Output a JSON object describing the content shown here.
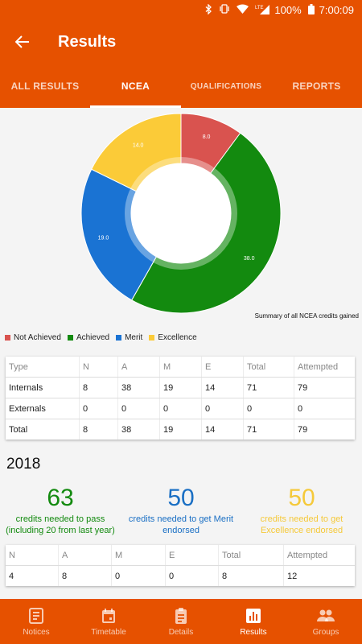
{
  "status_bar": {
    "battery": "100%",
    "time": "7:00:09",
    "network": "LTE"
  },
  "app_bar": {
    "title": "Results"
  },
  "tabs": [
    {
      "label": "ALL RESULTS",
      "active": false
    },
    {
      "label": "NCEA",
      "active": true
    },
    {
      "label": "QUALIFICATIONS",
      "active": false
    },
    {
      "label": "REPORTS",
      "active": false
    }
  ],
  "chart_data": {
    "type": "pie",
    "donut": true,
    "caption": "Summary of all NCEA credits gained",
    "categories": [
      "Not Achieved",
      "Achieved",
      "Merit",
      "Excellence"
    ],
    "values": [
      8.0,
      38.0,
      19.0,
      14.0
    ],
    "value_labels": [
      "8.0",
      "38.0",
      "19.0",
      "14.0"
    ],
    "colors": [
      "#d9534f",
      "#138a0f",
      "#1a73d3",
      "#fbcb38"
    ],
    "legend_position": "bottom-left"
  },
  "summary_table": {
    "headers": [
      "Type",
      "N",
      "A",
      "M",
      "E",
      "Total",
      "Attempted"
    ],
    "rows": [
      [
        "Internals",
        "8",
        "38",
        "19",
        "14",
        "71",
        "79"
      ],
      [
        "Externals",
        "0",
        "0",
        "0",
        "0",
        "0",
        "0"
      ],
      [
        "Total",
        "8",
        "38",
        "19",
        "14",
        "71",
        "79"
      ]
    ]
  },
  "year_section": {
    "year": "2018",
    "stats": [
      {
        "value": "63",
        "label": "credits needed to pass (including 20 from last year)",
        "color": "#138a0f"
      },
      {
        "value": "50",
        "label": "credits needed to get Merit endorsed",
        "color": "#1a6fc4"
      },
      {
        "value": "50",
        "label": "credits needed to get Excellence endorsed",
        "color": "#f5c93a"
      }
    ],
    "table": {
      "headers": [
        "N",
        "A",
        "M",
        "E",
        "Total",
        "Attempted"
      ],
      "rows": [
        [
          "4",
          "8",
          "0",
          "0",
          "8",
          "12"
        ]
      ]
    }
  },
  "bottom_nav": [
    {
      "label": "Notices",
      "icon": "notices-icon",
      "active": false
    },
    {
      "label": "Timetable",
      "icon": "calendar-icon",
      "active": false
    },
    {
      "label": "Details",
      "icon": "clipboard-icon",
      "active": false
    },
    {
      "label": "Results",
      "icon": "bar-chart-icon",
      "active": true
    },
    {
      "label": "Groups",
      "icon": "people-icon",
      "active": false
    }
  ],
  "theme": {
    "primary": "#e65100"
  }
}
